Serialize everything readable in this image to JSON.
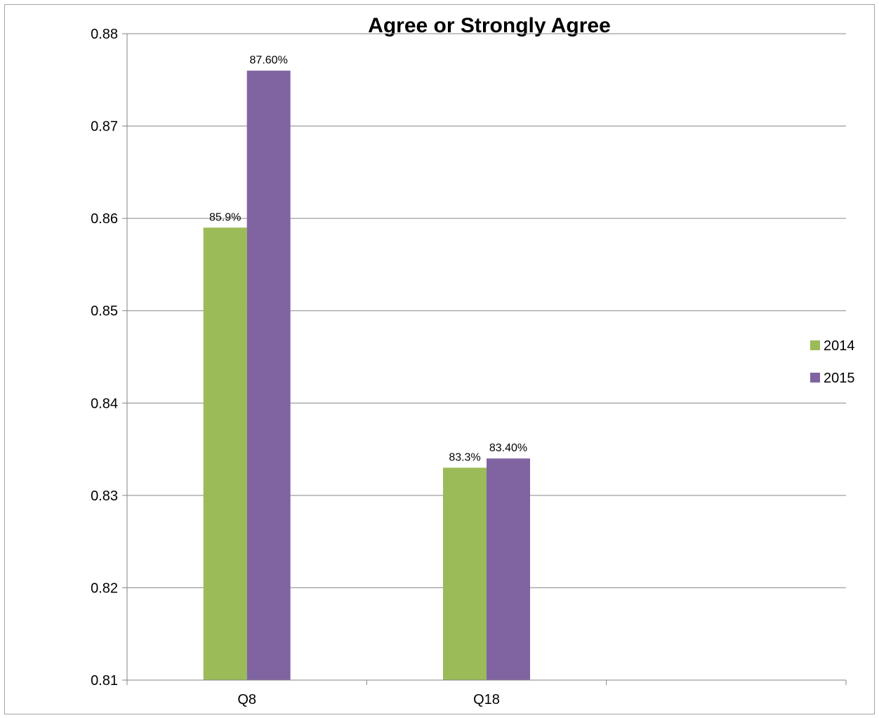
{
  "chart_data": {
    "type": "bar",
    "title": "Agree or Strongly Agree",
    "xlabel": "",
    "ylabel": "",
    "categories": [
      "Q8",
      "Q18",
      ""
    ],
    "series": [
      {
        "name": "2014",
        "color": "#9bbb59",
        "values": [
          0.859,
          0.833,
          null
        ],
        "labels": [
          "85.9%",
          "83.3%",
          ""
        ]
      },
      {
        "name": "2015",
        "color": "#8064a2",
        "values": [
          0.876,
          0.834,
          null
        ],
        "labels": [
          "87.60%",
          "83.40%",
          ""
        ]
      }
    ],
    "ylim": [
      0.81,
      0.88
    ],
    "yticks": [
      0.81,
      0.82,
      0.83,
      0.84,
      0.85,
      0.86,
      0.87,
      0.88
    ],
    "ytick_labels": [
      "0.81",
      "0.82",
      "0.83",
      "0.84",
      "0.85",
      "0.86",
      "0.87",
      "0.88"
    ],
    "grid": true,
    "legend_position": "right"
  }
}
